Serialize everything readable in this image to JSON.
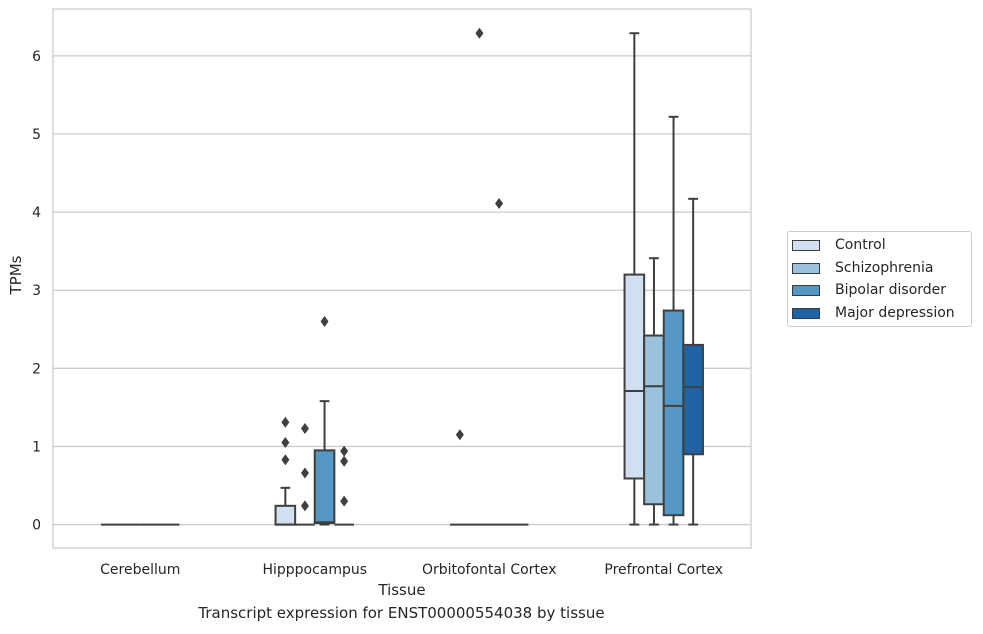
{
  "chart_data": {
    "type": "box",
    "caption": "Transcript expression for ENST00000554038 by tissue",
    "xlabel": "Tissue",
    "ylabel": "TPMs",
    "ylim": [
      -0.3,
      6.6
    ],
    "yticks": [
      0,
      1,
      2,
      3,
      4,
      5,
      6
    ],
    "grid": "horizontal",
    "legend_position": "right",
    "categories": [
      "Cerebellum",
      "Hipppocampus",
      "Orbitofontal Cortex",
      "Prefrontal Cortex"
    ],
    "series": [
      {
        "name": "Control",
        "color": "#d0e0f1",
        "boxes": [
          {
            "min": 0,
            "q1": 0,
            "median": 0,
            "q3": 0,
            "max": 0,
            "outliers": []
          },
          {
            "min": 0,
            "q1": 0,
            "median": 0,
            "q3": 0.24,
            "max": 0.47,
            "outliers": [
              0.83,
              1.05,
              1.31
            ]
          },
          {
            "min": 0,
            "q1": 0,
            "median": 0,
            "q3": 0,
            "max": 0,
            "outliers": [
              1.15
            ]
          },
          {
            "min": 0,
            "q1": 0.59,
            "median": 1.71,
            "q3": 3.2,
            "max": 6.29,
            "outliers": []
          }
        ]
      },
      {
        "name": "Schizophrenia",
        "color": "#9bc2dc",
        "boxes": [
          {
            "min": 0,
            "q1": 0,
            "median": 0,
            "q3": 0,
            "max": 0,
            "outliers": []
          },
          {
            "min": 0,
            "q1": 0,
            "median": 0,
            "q3": 0,
            "max": 0,
            "outliers": [
              0.24,
              0.66,
              1.23
            ]
          },
          {
            "min": 0,
            "q1": 0,
            "median": 0,
            "q3": 0,
            "max": 0,
            "outliers": [
              6.29
            ]
          },
          {
            "min": 0,
            "q1": 0.26,
            "median": 1.77,
            "q3": 2.42,
            "max": 3.41,
            "outliers": []
          }
        ]
      },
      {
        "name": "Bipolar disorder",
        "color": "#5496c4",
        "boxes": [
          {
            "min": 0,
            "q1": 0,
            "median": 0,
            "q3": 0,
            "max": 0,
            "outliers": []
          },
          {
            "min": 0,
            "q1": 0.02,
            "median": 0.03,
            "q3": 0.95,
            "max": 1.58,
            "outliers": [
              2.6
            ]
          },
          {
            "min": 0,
            "q1": 0,
            "median": 0,
            "q3": 0,
            "max": 0,
            "outliers": [
              4.11
            ]
          },
          {
            "min": 0,
            "q1": 0.12,
            "median": 1.52,
            "q3": 2.74,
            "max": 5.22,
            "outliers": []
          }
        ]
      },
      {
        "name": "Major depression",
        "color": "#2063a5",
        "boxes": [
          {
            "min": 0,
            "q1": 0,
            "median": 0,
            "q3": 0,
            "max": 0,
            "outliers": []
          },
          {
            "min": 0,
            "q1": 0,
            "median": 0,
            "q3": 0,
            "max": 0,
            "outliers": [
              0.3,
              0.81,
              0.94
            ]
          },
          {
            "min": 0,
            "q1": 0,
            "median": 0,
            "q3": 0,
            "max": 0,
            "outliers": []
          },
          {
            "min": 0,
            "q1": 0.9,
            "median": 1.76,
            "q3": 2.3,
            "max": 4.17,
            "outliers": []
          }
        ]
      }
    ]
  }
}
